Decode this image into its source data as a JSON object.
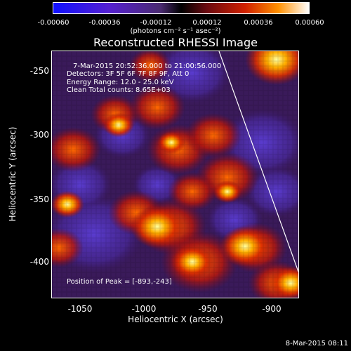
{
  "colorbar": {
    "ticks": [
      "-0.00060",
      "-0.00036",
      "-0.00012",
      "0.00012",
      "0.00036",
      "0.00060"
    ],
    "units": "(photons cm⁻² s⁻¹ asec⁻²)"
  },
  "title": "Reconstructed RHESSI Image",
  "info": {
    "time": "7-Mar-2015 20:52:36.000 to 21:00:56.000",
    "detectors": "Detectors: 3F 5F 6F 7F 8F 9F, Att 0",
    "energy": "Energy Range: 12.0 - 25.0 keV",
    "clean": "Clean     Total counts: 8.65E+03",
    "peak": "Position of Peak = [-893,-243]"
  },
  "axes": {
    "xlabel": "Heliocentric X (arcsec)",
    "ylabel": "Heliocentric Y (arcsec)",
    "xticks": [
      "-1050",
      "-1000",
      "-950",
      "-900"
    ],
    "yticks": [
      "-250",
      "-300",
      "-350",
      "-400"
    ],
    "xlim": [
      -1070,
      -875
    ],
    "ylim": [
      -428,
      -237
    ]
  },
  "timestamp": "8-Mar-2015 08:11",
  "colors": {
    "background": "#000000",
    "frame": "#ffffff"
  }
}
